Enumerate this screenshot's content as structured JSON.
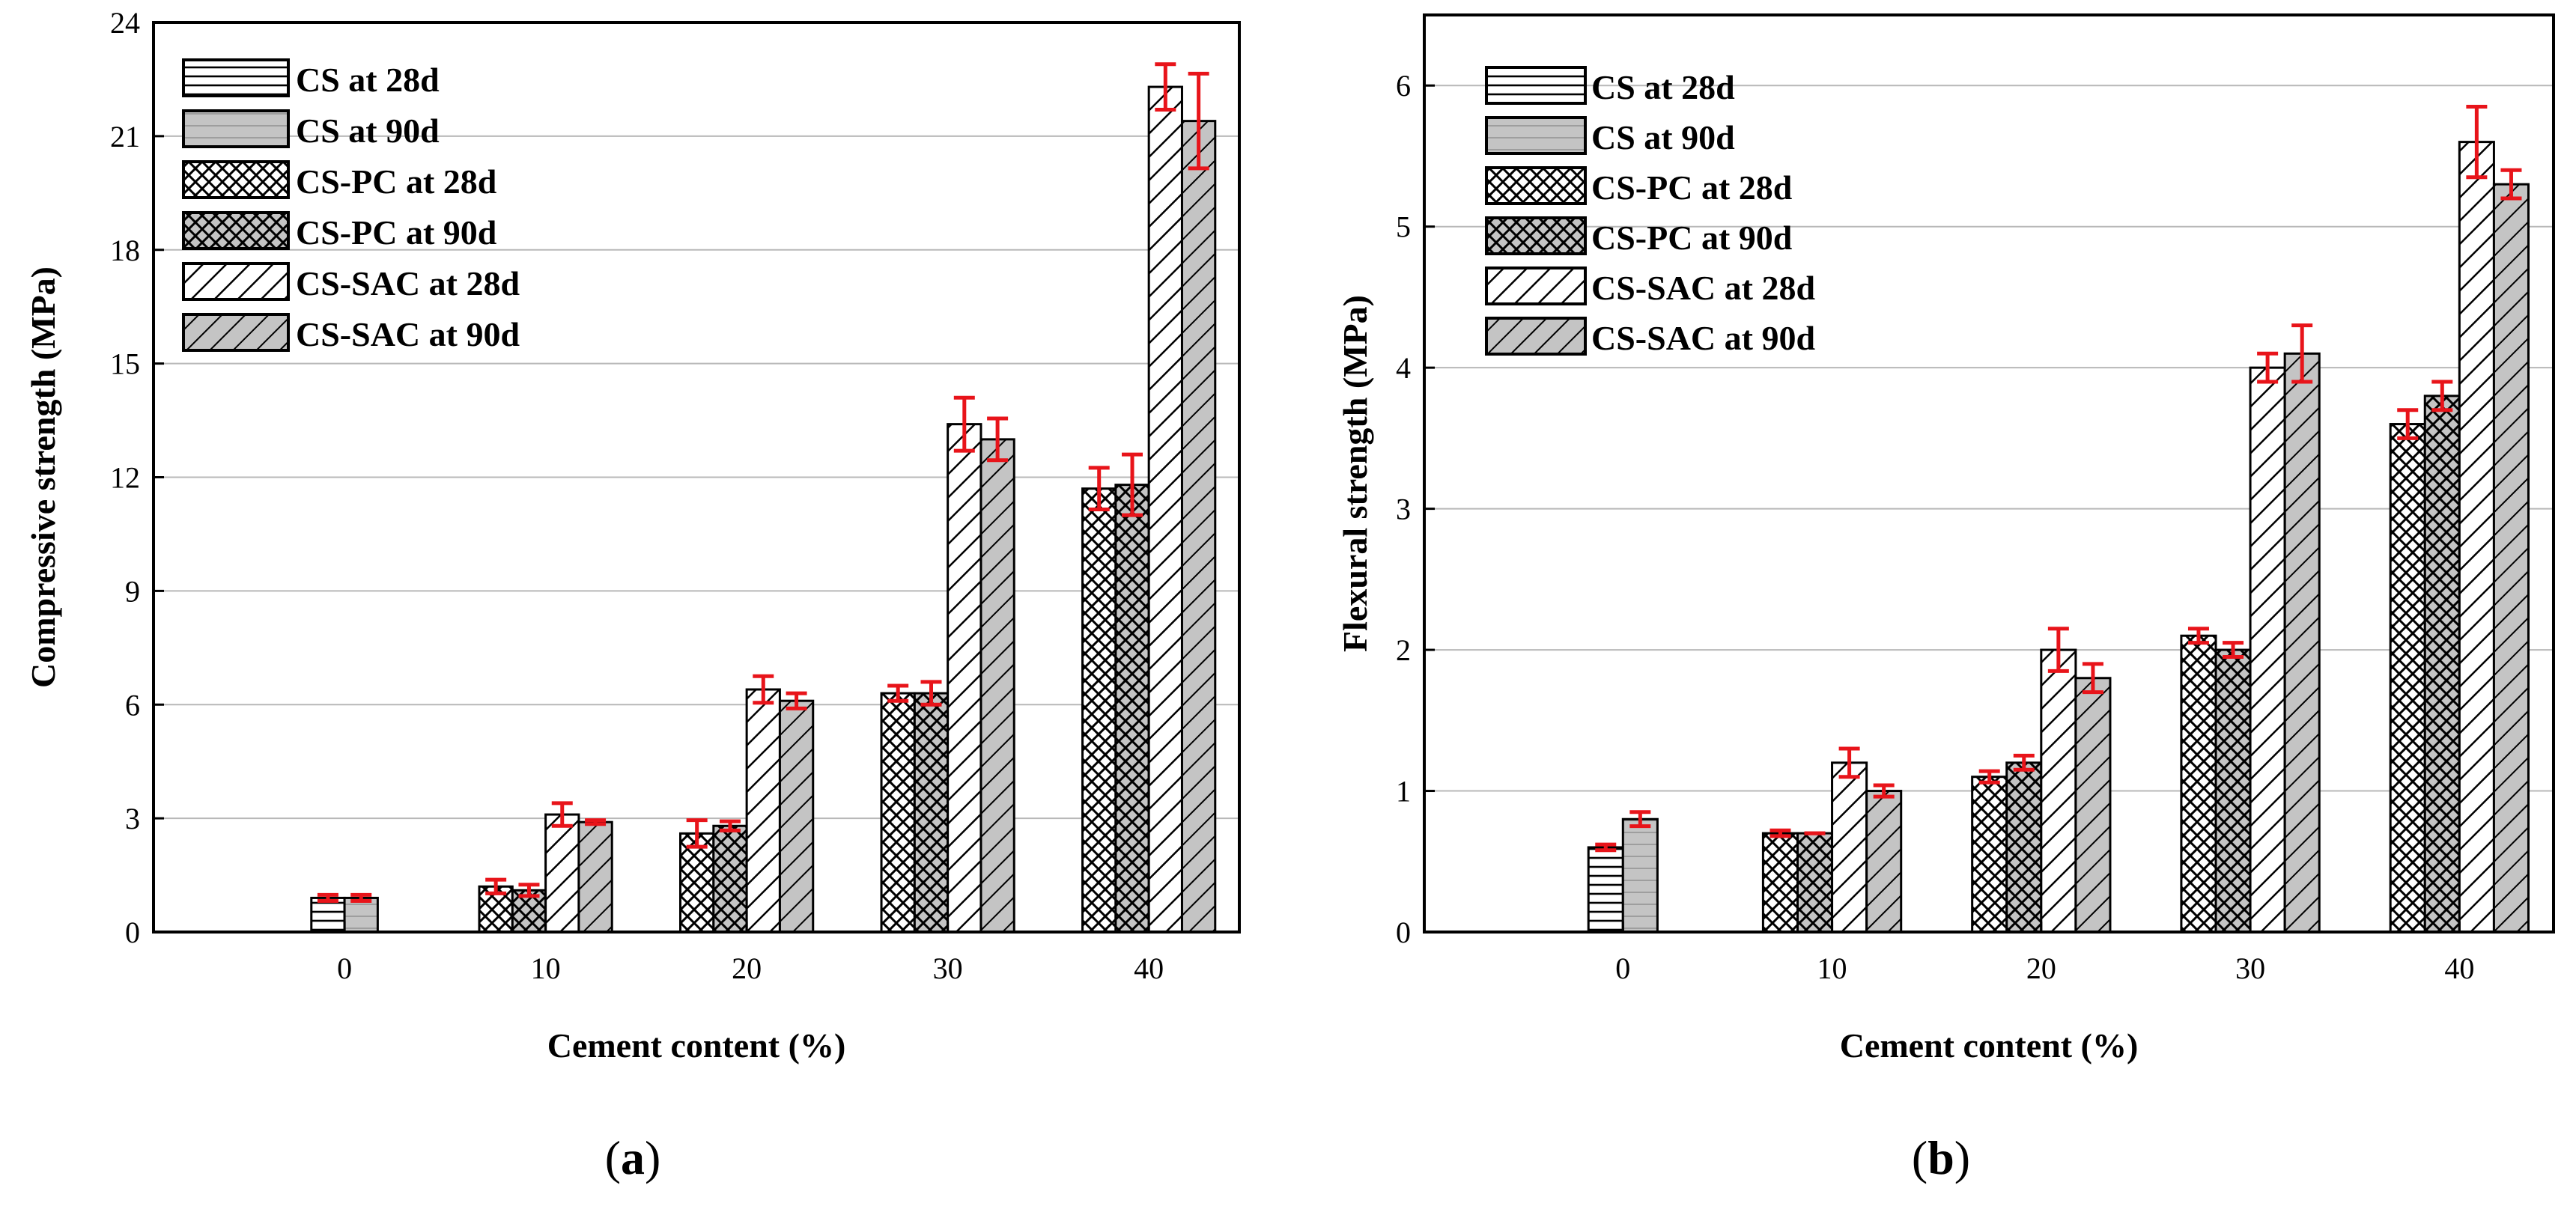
{
  "panels": [
    {
      "caption_letter": "a",
      "chart_data": {
        "type": "bar",
        "title": "",
        "xlabel": "Cement content (%)",
        "ylabel": "Compressive strength (MPa)",
        "categories": [
          "0",
          "10",
          "20",
          "30",
          "40"
        ],
        "ylim": [
          0,
          24
        ],
        "yticks": [
          0,
          3,
          6,
          9,
          12,
          15,
          18,
          21,
          24
        ],
        "grid": true,
        "legend_position": "top-left",
        "error_bar_color": "#e8141a",
        "series": [
          {
            "name": "CS at 28d",
            "pattern": "horizontal",
            "values": [
              0.9,
              null,
              null,
              null,
              null
            ],
            "errors": [
              0.08,
              null,
              null,
              null,
              null
            ]
          },
          {
            "name": "CS at 90d",
            "pattern": "gray",
            "values": [
              0.9,
              null,
              null,
              null,
              null
            ],
            "errors": [
              0.08,
              null,
              null,
              null,
              null
            ]
          },
          {
            "name": "CS-PC at 28d",
            "pattern": "crosshatch",
            "values": [
              null,
              1.2,
              2.6,
              6.3,
              11.7
            ],
            "errors": [
              null,
              0.18,
              0.35,
              0.2,
              0.55
            ]
          },
          {
            "name": "CS-PC at 90d",
            "pattern": "crosshatch-gray",
            "values": [
              null,
              1.1,
              2.8,
              6.3,
              11.8
            ],
            "errors": [
              null,
              0.15,
              0.12,
              0.3,
              0.8
            ]
          },
          {
            "name": "CS-SAC at 28d",
            "pattern": "diagonal",
            "values": [
              null,
              3.1,
              6.4,
              13.4,
              22.3
            ],
            "errors": [
              null,
              0.3,
              0.35,
              0.7,
              0.6
            ]
          },
          {
            "name": "CS-SAC at 90d",
            "pattern": "diagonal-gray",
            "values": [
              null,
              2.9,
              6.1,
              13.0,
              21.4
            ],
            "errors": [
              null,
              0.05,
              0.2,
              0.55,
              1.25
            ]
          }
        ]
      }
    },
    {
      "caption_letter": "b",
      "chart_data": {
        "type": "bar",
        "title": "",
        "xlabel": "Cement content (%)",
        "ylabel": "Flexural strength (MPa)",
        "categories": [
          "0",
          "10",
          "20",
          "30",
          "40"
        ],
        "ylim": [
          0,
          6.5
        ],
        "yticks": [
          0,
          1,
          2,
          3,
          4,
          5,
          6
        ],
        "grid": true,
        "legend_position": "top-left",
        "error_bar_color": "#e8141a",
        "series": [
          {
            "name": "CS at 28d",
            "pattern": "horizontal",
            "values": [
              0.6,
              null,
              null,
              null,
              null
            ],
            "errors": [
              0.02,
              null,
              null,
              null,
              null
            ]
          },
          {
            "name": "CS at 90d",
            "pattern": "gray",
            "values": [
              0.8,
              null,
              null,
              null,
              null
            ],
            "errors": [
              0.05,
              null,
              null,
              null,
              null
            ]
          },
          {
            "name": "CS-PC at 28d",
            "pattern": "crosshatch",
            "values": [
              null,
              0.7,
              1.1,
              2.1,
              3.6
            ],
            "errors": [
              null,
              0.02,
              0.04,
              0.05,
              0.1
            ]
          },
          {
            "name": "CS-PC at 90d",
            "pattern": "crosshatch-gray",
            "values": [
              null,
              0.7,
              1.2,
              2.0,
              3.8
            ],
            "errors": [
              null,
              0.0,
              0.05,
              0.05,
              0.1
            ]
          },
          {
            "name": "CS-SAC at 28d",
            "pattern": "diagonal",
            "values": [
              null,
              1.2,
              2.0,
              4.0,
              5.6
            ],
            "errors": [
              null,
              0.1,
              0.15,
              0.1,
              0.25
            ]
          },
          {
            "name": "CS-SAC at 90d",
            "pattern": "diagonal-gray",
            "values": [
              null,
              1.0,
              1.8,
              4.1,
              5.3
            ],
            "errors": [
              null,
              0.04,
              0.1,
              0.2,
              0.1
            ]
          }
        ]
      }
    }
  ]
}
